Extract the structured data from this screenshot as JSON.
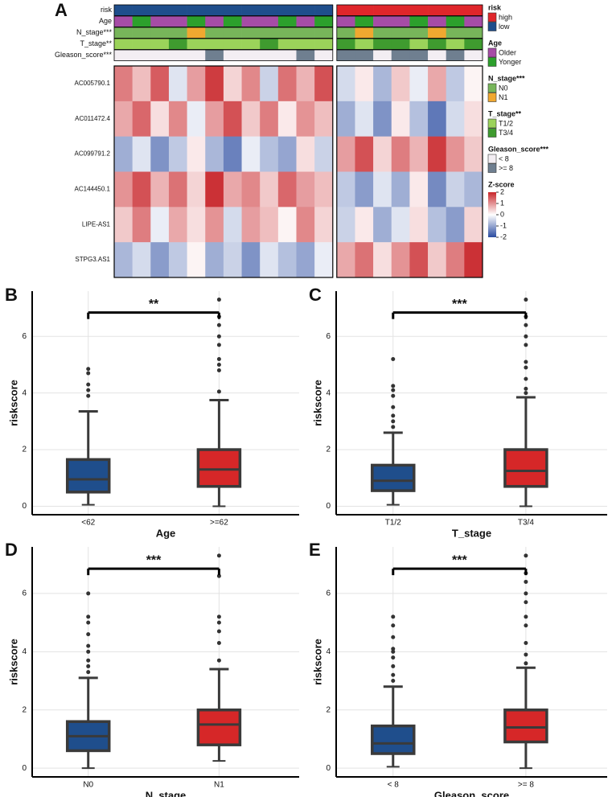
{
  "chart_data": [
    {
      "type": "heatmap",
      "panel": "A",
      "annotation_tracks": [
        {
          "name": "risk",
          "levels": [
            {
              "label": "high",
              "color": "#e0262b"
            },
            {
              "label": "low",
              "color": "#1f4e8c"
            }
          ],
          "values": [
            "low",
            "low",
            "low",
            "low",
            "low",
            "low",
            "low",
            "low",
            "low",
            "low",
            "low",
            "low",
            "high",
            "high",
            "high",
            "high",
            "high",
            "high",
            "high",
            "high"
          ]
        },
        {
          "name": "Age",
          "levels": [
            {
              "label": "Older",
              "color": "#a64ca6"
            },
            {
              "label": "Yonger",
              "color": "#2ca02c"
            }
          ],
          "values": [
            "Older",
            "Yonger",
            "Older",
            "Older",
            "Yonger",
            "Older",
            "Yonger",
            "Older",
            "Older",
            "Yonger",
            "Older",
            "Yonger",
            "Older",
            "Yonger",
            "Older",
            "Older",
            "Yonger",
            "Older",
            "Yonger",
            "Older"
          ]
        },
        {
          "name": "N_stage***",
          "levels": [
            {
              "label": "N0",
              "color": "#77b55a"
            },
            {
              "label": "N1",
              "color": "#f0a830"
            }
          ],
          "values": [
            "N0",
            "N0",
            "N0",
            "N0",
            "N1",
            "N0",
            "N0",
            "N0",
            "N0",
            "N0",
            "N0",
            "N0",
            "N0",
            "N1",
            "N0",
            "N0",
            "N0",
            "N1",
            "N0",
            "N0"
          ]
        },
        {
          "name": "T_stage**",
          "levels": [
            {
              "label": "T1/2",
              "color": "#9bd35a"
            },
            {
              "label": "T3/4",
              "color": "#3f9b2f"
            }
          ],
          "values": [
            "T1/2",
            "T1/2",
            "T1/2",
            "T3/4",
            "T1/2",
            "T1/2",
            "T1/2",
            "T1/2",
            "T3/4",
            "T1/2",
            "T1/2",
            "T1/2",
            "T3/4",
            "T1/2",
            "T3/4",
            "T3/4",
            "T1/2",
            "T3/4",
            "T1/2",
            "T3/4"
          ]
        },
        {
          "name": "Gleason_score***",
          "levels": [
            {
              "label": "< 8",
              "color": "#f3eef3"
            },
            {
              "label": ">= 8",
              "color": "#6f7f90"
            }
          ],
          "values": [
            "< 8",
            "< 8",
            "< 8",
            "< 8",
            "< 8",
            ">= 8",
            "< 8",
            "< 8",
            "< 8",
            "< 8",
            ">= 8",
            "< 8",
            ">= 8",
            ">= 8",
            "< 8",
            ">= 8",
            ">= 8",
            "< 8",
            ">= 8",
            "< 8"
          ]
        }
      ],
      "rows": [
        {
          "name": "AC005790.1",
          "values": [
            1.2,
            0.6,
            1.5,
            -0.3,
            0.9,
            1.8,
            0.4,
            1.1,
            -0.5,
            1.3,
            0.7,
            1.6,
            -0.4,
            0.2,
            -0.8,
            0.5,
            -0.2,
            0.8,
            -0.6,
            0.1
          ]
        },
        {
          "name": "AC011472.4",
          "values": [
            0.8,
            1.4,
            0.3,
            1.1,
            -0.2,
            0.9,
            1.6,
            0.5,
            1.2,
            0.2,
            1.0,
            0.6,
            -0.9,
            -0.3,
            -1.2,
            0.2,
            -0.7,
            -1.5,
            -0.4,
            0.3
          ]
        },
        {
          "name": "AC099791.2",
          "values": [
            -0.9,
            -0.3,
            -1.2,
            -0.6,
            0.2,
            -0.8,
            -1.4,
            -0.2,
            -0.7,
            -1.0,
            0.3,
            -0.5,
            0.9,
            1.6,
            0.4,
            1.2,
            0.7,
            1.8,
            1.0,
            0.5
          ]
        },
        {
          "name": "AC144450.1",
          "values": [
            1.0,
            1.6,
            0.7,
            1.3,
            0.4,
            1.9,
            0.8,
            1.1,
            0.5,
            1.4,
            0.9,
            0.6,
            -0.6,
            -1.1,
            -0.3,
            -0.9,
            0.2,
            -1.3,
            -0.5,
            -0.8
          ]
        },
        {
          "name": "LIPE-AS1",
          "values": [
            0.5,
            1.2,
            -0.2,
            0.8,
            0.3,
            1.0,
            -0.4,
            0.9,
            0.6,
            0.1,
            1.1,
            0.4,
            -0.5,
            0.2,
            -0.9,
            -0.3,
            0.3,
            -0.7,
            -1.1,
            0.4
          ]
        },
        {
          "name": "STPG3.AS1",
          "values": [
            -0.8,
            -0.4,
            -1.1,
            -0.6,
            0.1,
            -0.9,
            -0.5,
            -1.2,
            -0.3,
            -0.7,
            -1.0,
            -0.2,
            0.8,
            1.3,
            0.3,
            1.0,
            1.6,
            0.5,
            1.2,
            1.9
          ]
        }
      ],
      "zscale": {
        "title": "Z-score",
        "lim": [
          -2,
          2
        ],
        "ticks": [
          2,
          1,
          0,
          -1,
          -2
        ],
        "colors": [
          "#2a4ba0",
          "#ffffff",
          "#c8262b"
        ]
      }
    },
    {
      "type": "box",
      "panel": "B",
      "xlabel": "Age",
      "ylabel": "riskscore",
      "categories": [
        "<62",
        ">=62"
      ],
      "colors": [
        "#1f4e8c",
        "#d62728"
      ],
      "boxes": [
        {
          "min": 0.05,
          "q1": 0.5,
          "median": 0.95,
          "q3": 1.65,
          "max": 3.35,
          "outliers": [
            3.9,
            4.1,
            4.3,
            4.7,
            4.85
          ]
        },
        {
          "min": 0,
          "q1": 0.7,
          "median": 1.3,
          "q3": 2.0,
          "max": 3.75,
          "outliers": [
            4.05,
            4.8,
            5.0,
            5.2,
            5.7,
            6.0,
            6.4,
            6.7,
            7.3
          ]
        }
      ],
      "significance": "**",
      "ylim": [
        -0.3,
        7.6
      ],
      "yticks": [
        0,
        2,
        4,
        6
      ],
      "grid": true
    },
    {
      "type": "box",
      "panel": "C",
      "xlabel": "T_stage",
      "ylabel": "riskscore",
      "categories": [
        "T1/2",
        "T3/4"
      ],
      "colors": [
        "#1f4e8c",
        "#d62728"
      ],
      "boxes": [
        {
          "min": 0.05,
          "q1": 0.55,
          "median": 0.9,
          "q3": 1.45,
          "max": 2.6,
          "outliers": [
            2.8,
            3.0,
            3.2,
            3.5,
            3.9,
            4.1,
            4.25,
            5.2
          ]
        },
        {
          "min": 0,
          "q1": 0.7,
          "median": 1.25,
          "q3": 2.0,
          "max": 3.85,
          "outliers": [
            4.0,
            4.15,
            4.5,
            4.9,
            5.1,
            5.7,
            6.0,
            6.4,
            6.7,
            7.3
          ]
        }
      ],
      "significance": "***",
      "ylim": [
        -0.3,
        7.6
      ],
      "yticks": [
        0,
        2,
        4,
        6
      ],
      "grid": true
    },
    {
      "type": "box",
      "panel": "D",
      "xlabel": "N_stage",
      "ylabel": "riskscore",
      "categories": [
        "N0",
        "N1"
      ],
      "colors": [
        "#1f4e8c",
        "#d62728"
      ],
      "boxes": [
        {
          "min": 0,
          "q1": 0.6,
          "median": 1.1,
          "q3": 1.6,
          "max": 3.1,
          "outliers": [
            3.3,
            3.5,
            3.7,
            4.0,
            4.2,
            4.6,
            5.0,
            5.2,
            6.0
          ]
        },
        {
          "min": 0.25,
          "q1": 0.8,
          "median": 1.5,
          "q3": 2.0,
          "max": 3.4,
          "outliers": [
            3.7,
            4.3,
            4.7,
            5.0,
            5.2,
            6.6,
            7.3
          ]
        }
      ],
      "significance": "***",
      "ylim": [
        -0.3,
        7.6
      ],
      "yticks": [
        0,
        2,
        4,
        6
      ],
      "grid": true
    },
    {
      "type": "box",
      "panel": "E",
      "xlabel": "Gleason_score",
      "ylabel": "riskscore",
      "categories": [
        "< 8",
        ">= 8"
      ],
      "colors": [
        "#1f4e8c",
        "#d62728"
      ],
      "boxes": [
        {
          "min": 0.05,
          "q1": 0.5,
          "median": 0.85,
          "q3": 1.45,
          "max": 2.8,
          "outliers": [
            3.0,
            3.2,
            3.5,
            3.8,
            4.0,
            4.1,
            4.5,
            4.9,
            5.2
          ]
        },
        {
          "min": 0,
          "q1": 0.9,
          "median": 1.4,
          "q3": 2.0,
          "max": 3.45,
          "outliers": [
            3.6,
            3.9,
            4.3,
            4.9,
            5.2,
            5.7,
            6.0,
            6.4,
            6.7,
            7.3
          ]
        }
      ],
      "significance": "***",
      "ylim": [
        -0.3,
        7.6
      ],
      "yticks": [
        0,
        2,
        4,
        6
      ],
      "grid": true
    }
  ]
}
